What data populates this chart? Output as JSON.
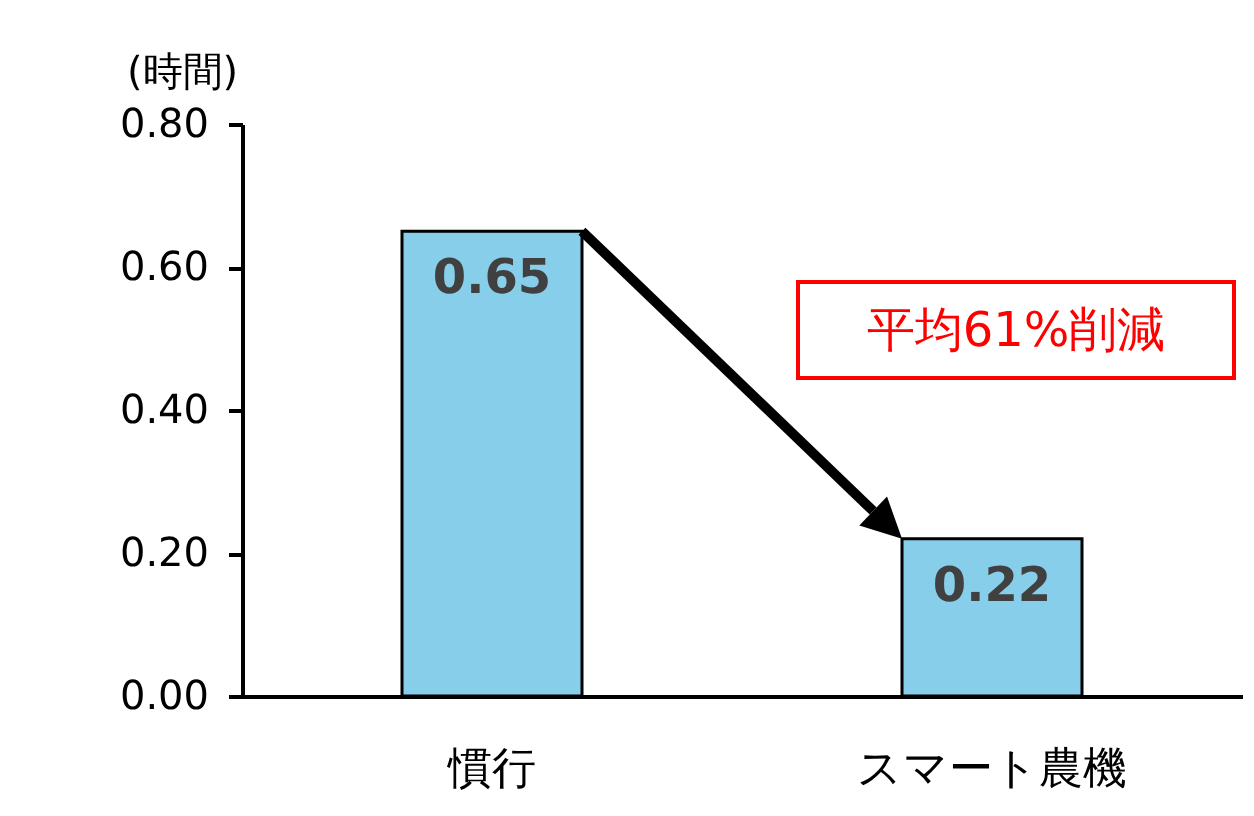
{
  "chart_data": {
    "type": "bar",
    "ylabel": "(時間)",
    "categories": [
      "慣行",
      "スマート農機"
    ],
    "values": [
      0.65,
      0.22
    ],
    "color": "#87ceeb",
    "ylim": [
      0,
      0.8
    ],
    "yticks": [
      {
        "value": 0,
        "label": "0.00"
      },
      {
        "value": 0.2,
        "label": "0.20"
      },
      {
        "value": 0.4,
        "label": "0.40"
      },
      {
        "value": 0.6,
        "label": "0.60"
      },
      {
        "value": 0.8,
        "label": "0.80"
      }
    ],
    "data_labels": true,
    "annotations": [
      "平均61%削減"
    ]
  }
}
